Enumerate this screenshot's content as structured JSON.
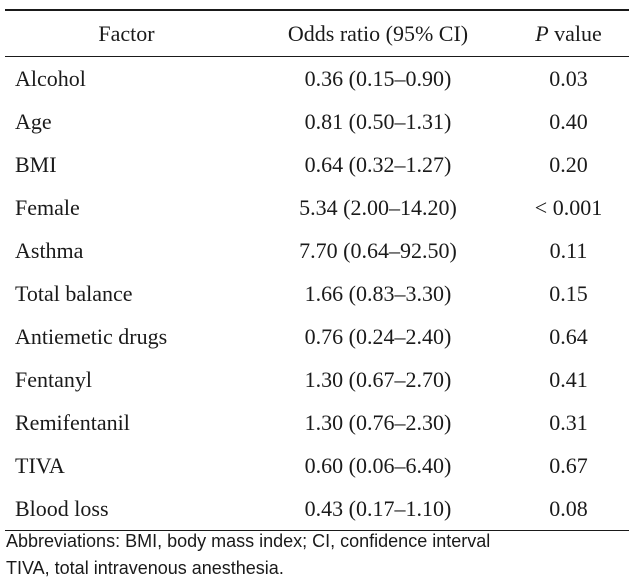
{
  "table": {
    "headers": {
      "factor": "Factor",
      "odds_ratio": "Odds ratio (95% CI)",
      "p_italic": "P",
      "p_rest": " value"
    },
    "rows": [
      {
        "factor": "Alcohol",
        "odds_ratio": "0.36 (0.15–0.90)",
        "p": "0.03"
      },
      {
        "factor": "Age",
        "odds_ratio": "0.81 (0.50–1.31)",
        "p": "0.40"
      },
      {
        "factor": "BMI",
        "odds_ratio": "0.64 (0.32–1.27)",
        "p": "0.20"
      },
      {
        "factor": "Female",
        "odds_ratio": "5.34 (2.00–14.20)",
        "p": "< 0.001"
      },
      {
        "factor": "Asthma",
        "odds_ratio": "7.70 (0.64–92.50)",
        "p": "0.11"
      },
      {
        "factor": "Total balance",
        "odds_ratio": "1.66 (0.83–3.30)",
        "p": "0.15"
      },
      {
        "factor": "Antiemetic drugs",
        "odds_ratio": "0.76 (0.24–2.40)",
        "p": "0.64"
      },
      {
        "factor": "Fentanyl",
        "odds_ratio": "1.30 (0.67–2.70)",
        "p": "0.41"
      },
      {
        "factor": "Remifentanil",
        "odds_ratio": "1.30 (0.76–2.30)",
        "p": "0.31"
      },
      {
        "factor": "TIVA",
        "odds_ratio": "0.60 (0.06–6.40)",
        "p": "0.67"
      },
      {
        "factor": "Blood loss",
        "odds_ratio": "0.43 (0.17–1.10)",
        "p": "0.08"
      }
    ]
  },
  "footnote": {
    "line1": "Abbreviations: BMI, body mass index; CI, confidence interval",
    "line2": "TIVA, total intravenous anesthesia."
  }
}
